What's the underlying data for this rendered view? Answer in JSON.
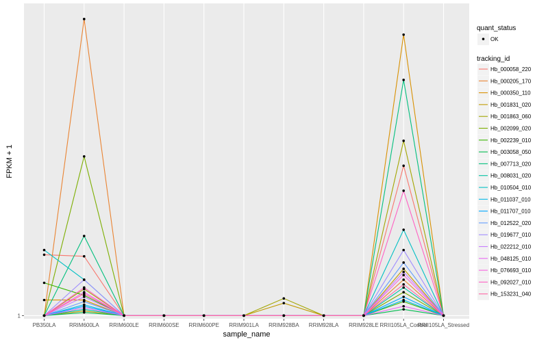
{
  "chart_data": {
    "type": "line",
    "xlabel": "sample_name",
    "ylabel": "FPKM + 1",
    "categories": [
      "PB350LA",
      "RRIM600LA",
      "RRIM600LE",
      "RRIM600SE",
      "RRIM600PE",
      "RRIM901LA",
      "RRIM928BA",
      "RRIM928LA",
      "RRIM928LE",
      "RRII105LA_Control",
      "RRII105LA_Stressed"
    ],
    "y_ticks": [
      {
        "value": 1,
        "label": "1"
      }
    ],
    "ylim": [
      0.8,
      21.0
    ],
    "grid": true,
    "legend_shape": {
      "title": "quant_status",
      "entries": [
        {
          "label": "OK",
          "symbol": "point",
          "color": "#000000"
        }
      ]
    },
    "legend_color": {
      "title": "tracking_id"
    },
    "series": [
      {
        "name": "Hb_000058_220",
        "color": "#F8766D",
        "values": [
          4.9,
          4.8,
          1,
          1,
          1,
          1,
          1,
          1,
          1,
          10.6,
          1
        ]
      },
      {
        "name": "Hb_000205_170",
        "color": "#EA8331",
        "values": [
          1,
          20.0,
          1,
          1,
          1,
          1,
          1,
          1,
          1,
          3.3,
          1
        ]
      },
      {
        "name": "Hb_000350_110",
        "color": "#D89000",
        "values": [
          2.0,
          2.0,
          1,
          1,
          1,
          1,
          1,
          1,
          1,
          19.0,
          1
        ]
      },
      {
        "name": "Hb_001831_020",
        "color": "#C09B00",
        "values": [
          1,
          1.3,
          1,
          1,
          1,
          1,
          1.8,
          1,
          1,
          4.0,
          1
        ]
      },
      {
        "name": "Hb_001863_060",
        "color": "#A3A500",
        "values": [
          1,
          2.7,
          1,
          1,
          1,
          1,
          2.1,
          1,
          1,
          12.2,
          1
        ]
      },
      {
        "name": "Hb_002099_020",
        "color": "#7CAE00",
        "values": [
          1,
          11.2,
          1,
          1,
          1,
          1,
          1,
          1,
          1,
          2.5,
          1
        ]
      },
      {
        "name": "Hb_002239_010",
        "color": "#39B600",
        "values": [
          3.1,
          2.3,
          1,
          1,
          1,
          1,
          1,
          1,
          1,
          1.9,
          1
        ]
      },
      {
        "name": "Hb_003058_050",
        "color": "#00BB4E",
        "values": [
          1,
          1.2,
          1,
          1,
          1,
          1,
          1,
          1,
          1,
          1.4,
          1
        ]
      },
      {
        "name": "Hb_007713_020",
        "color": "#00BF7D",
        "values": [
          1,
          6.1,
          1,
          1,
          1,
          1,
          1,
          1,
          1,
          16.1,
          1
        ]
      },
      {
        "name": "Hb_008031_020",
        "color": "#00C1A3",
        "values": [
          1,
          1.4,
          1,
          1,
          1,
          1,
          1,
          1,
          1,
          2.8,
          1
        ]
      },
      {
        "name": "Hb_010504_010",
        "color": "#00BFC4",
        "values": [
          5.2,
          3.3,
          1,
          1,
          1,
          1,
          1,
          1,
          1,
          6.5,
          1
        ]
      },
      {
        "name": "Hb_011037_010",
        "color": "#00B8E7",
        "values": [
          1,
          1.7,
          1,
          1,
          1,
          1,
          1,
          1,
          1,
          2.0,
          1
        ]
      },
      {
        "name": "Hb_011707_010",
        "color": "#00A9FF",
        "values": [
          1,
          1.6,
          1,
          1,
          1,
          1,
          1,
          1,
          1,
          2.2,
          1
        ]
      },
      {
        "name": "Hb_012522_020",
        "color": "#619CFF",
        "values": [
          1,
          1.9,
          1,
          1,
          1,
          1,
          1,
          1,
          1,
          4.4,
          1
        ]
      },
      {
        "name": "Hb_019677_010",
        "color": "#9F8CFF",
        "values": [
          1,
          3.3,
          1,
          1,
          1,
          1,
          1,
          1,
          1,
          5.2,
          1
        ]
      },
      {
        "name": "Hb_022212_010",
        "color": "#C77CFF",
        "values": [
          1,
          2.2,
          1,
          1,
          1,
          1,
          1,
          1,
          1,
          3.8,
          1
        ]
      },
      {
        "name": "Hb_048125_010",
        "color": "#E76BF3",
        "values": [
          1,
          1.5,
          1,
          1,
          1,
          1,
          1,
          1,
          1,
          1.6,
          1
        ]
      },
      {
        "name": "Hb_076693_010",
        "color": "#F763E0",
        "values": [
          1,
          2.5,
          1,
          1,
          1,
          1,
          1,
          1,
          1,
          3.6,
          1
        ]
      },
      {
        "name": "Hb_092027_010",
        "color": "#FF61C3",
        "values": [
          1,
          2.8,
          1,
          1,
          1,
          1,
          1,
          1,
          1,
          9.0,
          1
        ]
      },
      {
        "name": "Hb_153231_040",
        "color": "#FF67A4",
        "values": [
          1,
          2.4,
          1,
          1,
          1,
          1,
          1,
          1,
          1,
          3.0,
          1
        ]
      }
    ]
  }
}
